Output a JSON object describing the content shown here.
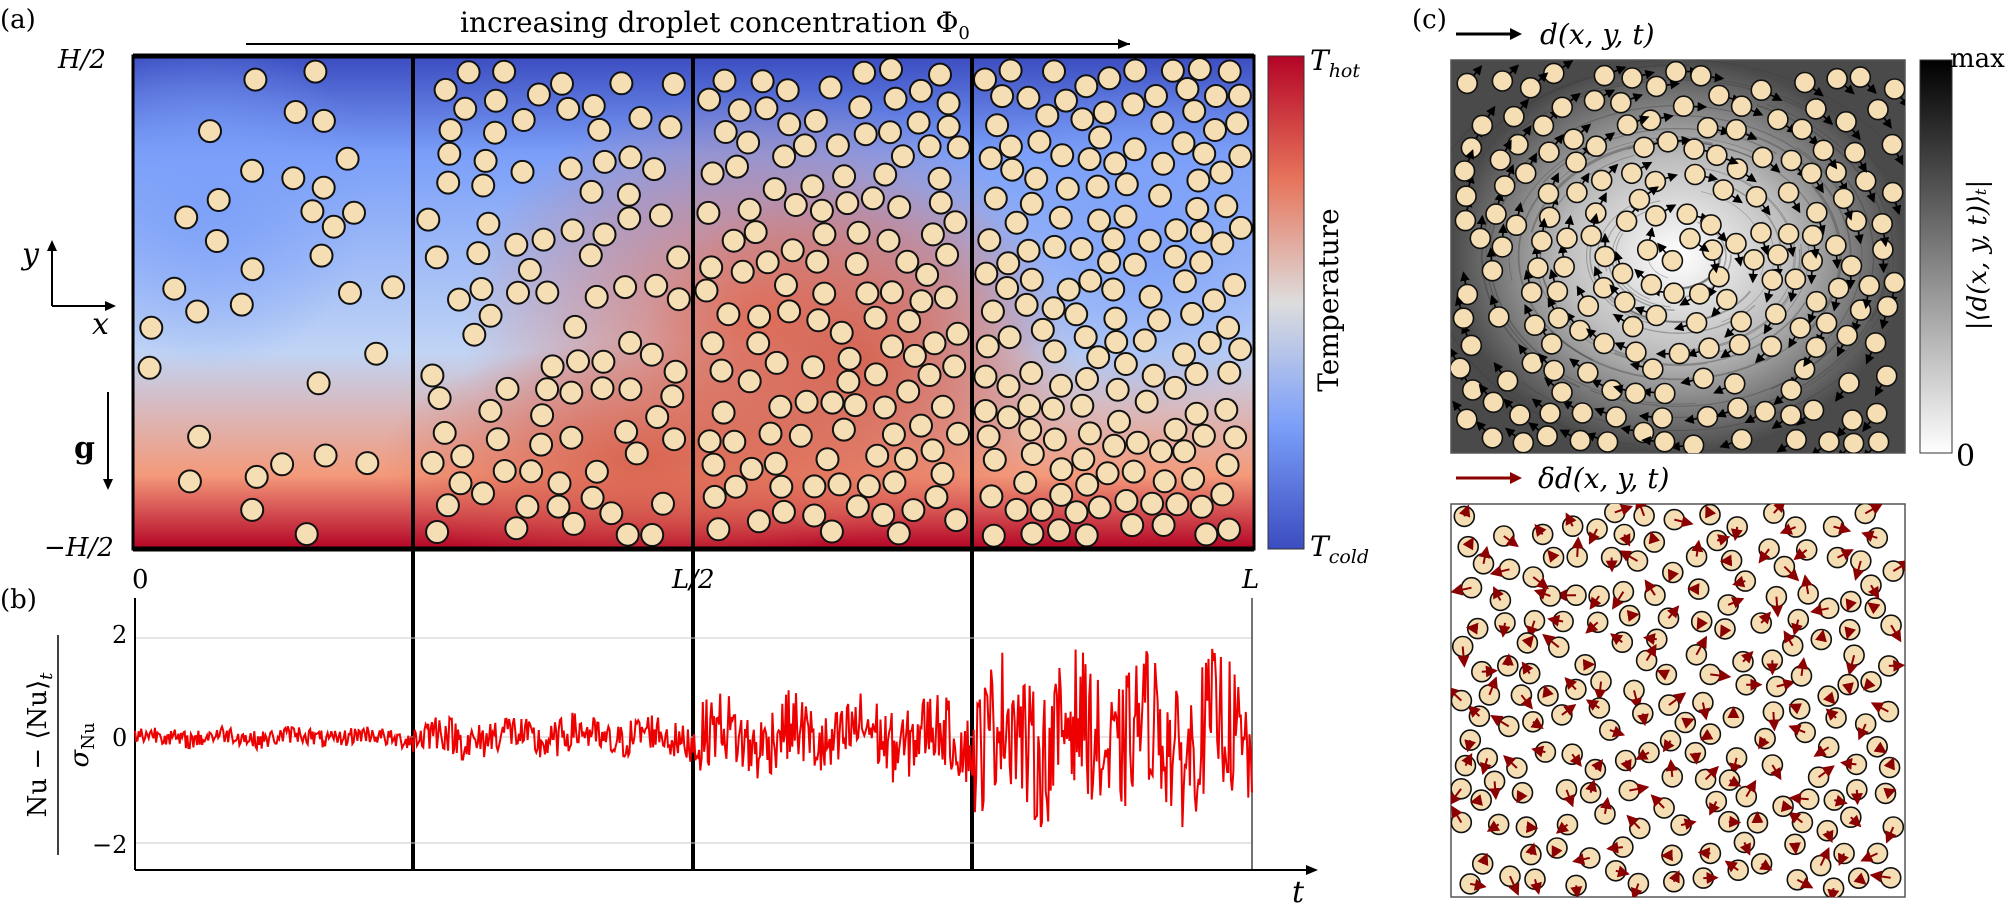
{
  "panels": {
    "a": {
      "label": "(a)",
      "arrow_text": "increasing droplet concentration Φ",
      "arrow_text_sub": "0",
      "y_top": "H/2",
      "y_bottom": "−H/2",
      "axis_y": "y",
      "axis_x": "x",
      "gravity": "g",
      "colorbar_top": "T",
      "colorbar_top_sub": "hot",
      "colorbar_bottom": "T",
      "colorbar_bottom_sub": "cold",
      "colorbar_label": "Temperature",
      "colors": {
        "hot": "#b40426",
        "cold": "#3b4cc0",
        "mid": "#dddddd",
        "droplet": "#f5deb3"
      }
    },
    "b": {
      "label": "(b)",
      "x_ticks": [
        "0",
        "L/2",
        "L"
      ],
      "y_ticks": [
        "2",
        "0",
        "−2"
      ],
      "ylabel_num": "Nu − ⟨Nu⟩",
      "ylabel_num_sub": "t",
      "ylabel_den": "σ",
      "ylabel_den_sub": "Nu",
      "xlabel": "t",
      "series_color": "#ee0000"
    },
    "c": {
      "label": "(c)",
      "legend_1": "d(x, y, t)",
      "legend_2": "δd(x, y, t)",
      "legend_1_color": "#000000",
      "legend_2_color": "#8b0000",
      "colorbar_max": "max",
      "colorbar_min": "0",
      "colorbar_label": "|⟨d(x, y, t)⟩ₜ|"
    }
  }
}
